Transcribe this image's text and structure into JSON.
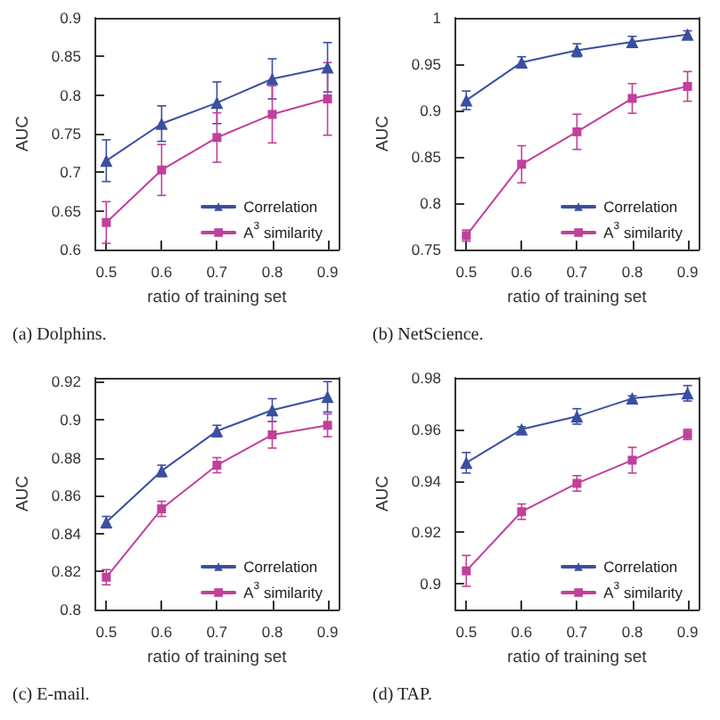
{
  "chart_data": [
    {
      "type": "line",
      "title": "(a) Dolphins.",
      "xlabel": "ratio of training set",
      "ylabel": "AUC",
      "x": [
        0.5,
        0.6,
        0.7,
        0.8,
        0.9
      ],
      "xlim": [
        0.48,
        0.92
      ],
      "xticks": [
        0.5,
        0.6,
        0.7,
        0.8,
        0.9
      ],
      "ylim": [
        0.6,
        0.9
      ],
      "yticks": [
        0.6,
        0.65,
        0.7,
        0.75,
        0.8,
        0.85,
        0.9
      ],
      "legend": "bottom right",
      "grid": false,
      "line_style": "solid",
      "series": [
        {
          "name": "Correlation",
          "color": "#3a4fa0",
          "marker": "triangle",
          "values": [
            0.715,
            0.763,
            0.79,
            0.821,
            0.836
          ],
          "errors": [
            0.027,
            0.023,
            0.027,
            0.026,
            0.032
          ]
        },
        {
          "name": "A$^{3}$ similarity",
          "color": "#c0409a",
          "marker": "square",
          "values": [
            0.635,
            0.703,
            0.745,
            0.775,
            0.795
          ],
          "errors": [
            0.027,
            0.033,
            0.032,
            0.037,
            0.047
          ]
        }
      ]
    },
    {
      "type": "line",
      "title": "(b) NetScience.",
      "xlabel": "ratio of training set",
      "ylabel": "AUC",
      "x": [
        0.5,
        0.6,
        0.7,
        0.8,
        0.9
      ],
      "xlim": [
        0.48,
        0.92
      ],
      "xticks": [
        0.5,
        0.6,
        0.7,
        0.8,
        0.9
      ],
      "ylim": [
        0.75,
        1
      ],
      "yticks": [
        0.75,
        0.8,
        0.85,
        0.9,
        0.95,
        1
      ],
      "legend": "bottom right",
      "grid": false,
      "line_style": "solid",
      "series": [
        {
          "name": "Correlation",
          "color": "#3a4fa0",
          "marker": "triangle",
          "values": [
            0.911,
            0.952,
            0.965,
            0.974,
            0.982
          ],
          "errors": [
            0.01,
            0.006,
            0.007,
            0.006,
            0.004
          ]
        },
        {
          "name": "A$^{3}$ similarity",
          "color": "#c0409a",
          "marker": "square",
          "values": [
            0.765,
            0.842,
            0.877,
            0.913,
            0.926
          ],
          "errors": [
            0.006,
            0.02,
            0.019,
            0.016,
            0.016
          ]
        }
      ]
    },
    {
      "type": "line",
      "title": "(c) E-mail.",
      "xlabel": "ratio of training set",
      "ylabel": "AUC",
      "x": [
        0.5,
        0.6,
        0.7,
        0.8,
        0.9
      ],
      "xlim": [
        0.48,
        0.92
      ],
      "xticks": [
        0.5,
        0.6,
        0.7,
        0.8,
        0.9
      ],
      "ylim": [
        0.8,
        0.922
      ],
      "yticks": [
        0.8,
        0.82,
        0.84,
        0.86,
        0.88,
        0.9,
        0.92
      ],
      "legend": "bottom right",
      "grid": false,
      "line_style": "solid",
      "series": [
        {
          "name": "Correlation",
          "color": "#3a4fa0",
          "marker": "triangle",
          "values": [
            0.846,
            0.873,
            0.894,
            0.905,
            0.912
          ],
          "errors": [
            0.003,
            0.003,
            0.003,
            0.006,
            0.008
          ]
        },
        {
          "name": "A$^{3}$ similarity",
          "color": "#c0409a",
          "marker": "square",
          "values": [
            0.817,
            0.853,
            0.876,
            0.892,
            0.897
          ],
          "errors": [
            0.004,
            0.004,
            0.004,
            0.007,
            0.006
          ]
        }
      ]
    },
    {
      "type": "line",
      "title": "(d) TAP.",
      "xlabel": "ratio of training set",
      "ylabel": "AUC",
      "x": [
        0.5,
        0.6,
        0.7,
        0.8,
        0.9
      ],
      "xlim": [
        0.48,
        0.92
      ],
      "xticks": [
        0.5,
        0.6,
        0.7,
        0.8,
        0.9
      ],
      "ylim": [
        0.89,
        0.98
      ],
      "yticks": [
        0.9,
        0.92,
        0.94,
        0.96,
        0.98
      ],
      "legend": "bottom right",
      "grid": false,
      "line_style": "solid",
      "series": [
        {
          "name": "Correlation",
          "color": "#3a4fa0",
          "marker": "triangle",
          "values": [
            0.947,
            0.96,
            0.965,
            0.972,
            0.974
          ],
          "errors": [
            0.004,
            0.001,
            0.003,
            0.001,
            0.003
          ]
        },
        {
          "name": "A$^{3}$ similarity",
          "color": "#c0409a",
          "marker": "square",
          "values": [
            0.905,
            0.928,
            0.939,
            0.948,
            0.958
          ],
          "errors": [
            0.006,
            0.003,
            0.003,
            0.005,
            0.002
          ]
        }
      ]
    }
  ]
}
